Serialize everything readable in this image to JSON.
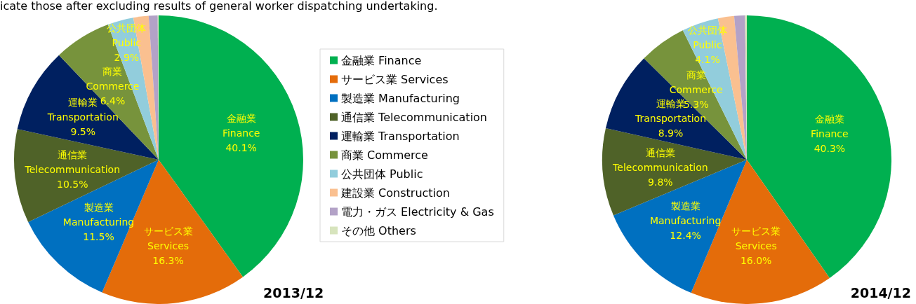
{
  "chart_data": [
    {
      "type": "pie",
      "title": "2013/12",
      "annotations": [
        "icate those after excluding results of general worker dispatching undertaking."
      ],
      "categories": [
        "金融業 Finance",
        "サービス業 Services",
        "製造業 Manufacturing",
        "通信業 Telecommunication",
        "運輸業 Transportation",
        "商業 Commerce",
        "公共団体 Public",
        "建設業 Construction",
        "電力・ガス Electricity & Gas",
        "その他 Others"
      ],
      "values": [
        40.1,
        16.3,
        11.5,
        10.5,
        9.5,
        6.4,
        2.9,
        1.7,
        1.0,
        0.1
      ],
      "value_labels": [
        "40.1%",
        "16.3%",
        "11.5%",
        "10.5%",
        "9.5%",
        "6.4%",
        "2.9%",
        null,
        null,
        null
      ],
      "colors": [
        "#00b050",
        "#e46c0a",
        "#0070c0",
        "#4f6228",
        "#002060",
        "#77933c",
        "#92cddc",
        "#fac090",
        "#b3a2c7",
        "#d7e4bd"
      ],
      "legend": "right"
    },
    {
      "type": "pie",
      "title": "2014/12",
      "categories": [
        "金融業 Finance",
        "サービス業 Services",
        "製造業 Manufacturing",
        "通信業 Telecommunication",
        "運輸業 Transportation",
        "商業 Commerce",
        "公共団体 Public",
        null,
        null,
        null
      ],
      "values": [
        40.3,
        16.0,
        12.4,
        9.8,
        8.9,
        5.3,
        4.1,
        1.8,
        1.2,
        0.2
      ],
      "value_labels": [
        "40.3%",
        "16.0%",
        "12.4%",
        "9.8%",
        "8.9%",
        "5.3%",
        "4.1%",
        null,
        null,
        null
      ],
      "colors": [
        "#00b050",
        "#e46c0a",
        "#0070c0",
        "#4f6228",
        "#002060",
        "#77933c",
        "#92cddc",
        "#fac090",
        "#b3a2c7",
        "#d7e4bd"
      ]
    }
  ]
}
